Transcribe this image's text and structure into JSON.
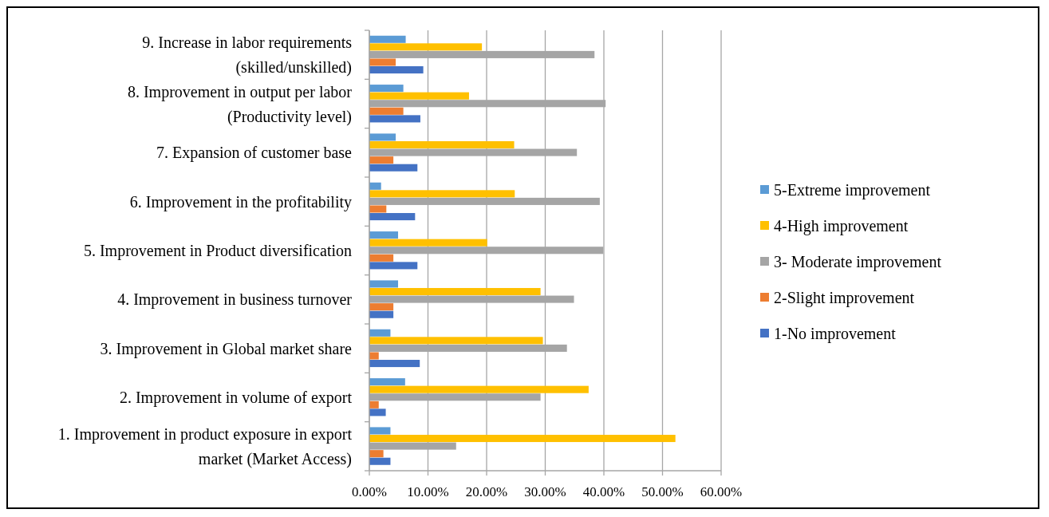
{
  "chart_data": {
    "type": "bar",
    "orientation": "horizontal",
    "categories": [
      "9. Increase in labor requirements (skilled/unskilled)",
      "8. Improvement in output per labor (Productivity level)",
      "7. Expansion of customer base",
      "6. Improvement in the profitability",
      "5. Improvement in Product diversification",
      "4. Improvement in business turnover",
      "3. Improvement in Global market share",
      "2. Improvement in volume of export",
      "1. Improvement in product exposure in export market (Market Access)"
    ],
    "series": [
      {
        "name": "5-Extreme improvement",
        "color": "#5b9bd5",
        "values": [
          6.2,
          5.8,
          4.5,
          2.0,
          4.9,
          4.9,
          3.6,
          6.1,
          3.6
        ]
      },
      {
        "name": "4-High improvement",
        "color": "#ffc000",
        "values": [
          19.2,
          17.0,
          24.7,
          24.8,
          20.1,
          29.2,
          29.6,
          37.4,
          52.2
        ]
      },
      {
        "name": "3- Moderate improvement",
        "color": "#a5a5a5",
        "values": [
          38.4,
          40.3,
          35.4,
          39.3,
          39.9,
          34.9,
          33.7,
          29.2,
          14.8
        ]
      },
      {
        "name": "2-Slight improvement",
        "color": "#ed7d31",
        "values": [
          4.5,
          5.8,
          4.1,
          2.9,
          4.1,
          4.1,
          1.6,
          1.6,
          2.4
        ]
      },
      {
        "name": "1-No improvement",
        "color": "#4472c4",
        "values": [
          9.2,
          8.7,
          8.2,
          7.8,
          8.2,
          4.1,
          8.6,
          2.8,
          3.6
        ]
      }
    ],
    "xlim": [
      0,
      60
    ],
    "xticks": [
      {
        "value": 0,
        "label": "0.00%"
      },
      {
        "value": 10,
        "label": "10.00%"
      },
      {
        "value": 20,
        "label": "20.00%"
      },
      {
        "value": 30,
        "label": "30.00%"
      },
      {
        "value": 40,
        "label": "40.00%"
      },
      {
        "value": 50,
        "label": "50.00%"
      },
      {
        "value": 60,
        "label": "60.00%"
      }
    ],
    "grid": "x",
    "legend": "right"
  }
}
